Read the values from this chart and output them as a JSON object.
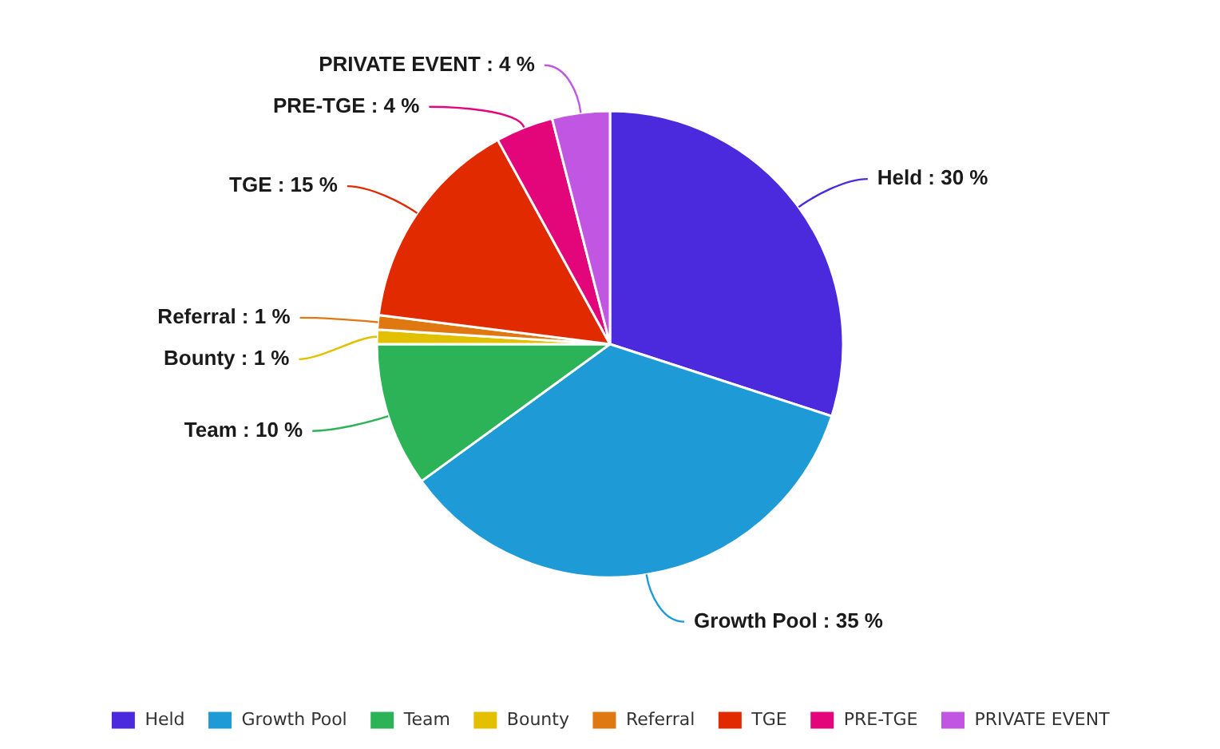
{
  "chart_data": {
    "type": "pie",
    "categories": [
      "Held",
      "Growth Pool",
      "Team",
      "Bounty",
      "Referral",
      "TGE",
      "PRE-TGE",
      "PRIVATE EVENT"
    ],
    "values": [
      30,
      35,
      10,
      1,
      1,
      15,
      4,
      4
    ],
    "value_labels": [
      "Held : 30 %",
      "Growth Pool : 35 %",
      "Team : 10 %",
      "Bounty : 1 %",
      "Referral : 1 %",
      "TGE : 15 %",
      "PRE-TGE : 4 %",
      "PRIVATE EVENT : 4 %"
    ],
    "colors": [
      "#4a2adc",
      "#1e9ad6",
      "#2db357",
      "#e2c000",
      "#e07812",
      "#e22a00",
      "#e2067a",
      "#c056e2"
    ],
    "legend": "bottom"
  }
}
